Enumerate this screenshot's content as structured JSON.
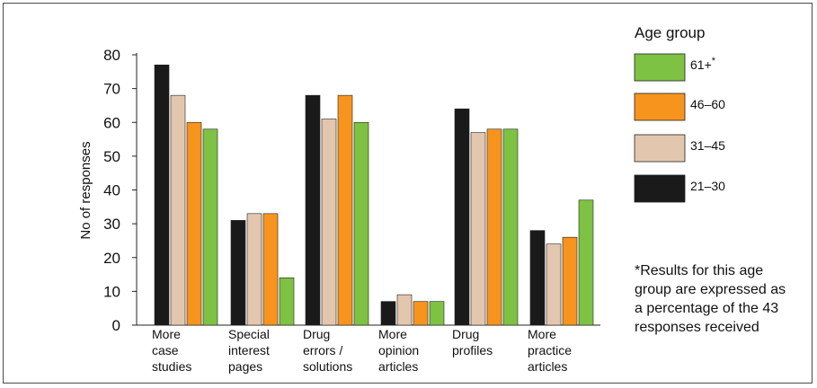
{
  "chart_data": {
    "type": "bar",
    "ylabel": "No of responses",
    "xlabel": "",
    "ylim": [
      0,
      80
    ],
    "yticks": [
      0,
      10,
      20,
      30,
      40,
      50,
      60,
      70,
      80
    ],
    "categories": [
      [
        "More",
        "case",
        "studies"
      ],
      [
        "Special",
        "interest",
        "pages"
      ],
      [
        "Drug",
        "errors /",
        "solutions"
      ],
      [
        "More",
        "opinion",
        "articles"
      ],
      [
        "Drug",
        "profiles"
      ],
      [
        "More",
        "practice",
        "articles"
      ]
    ],
    "legend_title": "Age group",
    "legend_placement": "right",
    "series": [
      {
        "name": "21–30",
        "color": "#1a1a1a",
        "values": [
          77,
          31,
          68,
          7,
          64,
          28
        ]
      },
      {
        "name": "31–45",
        "color": "#e3c6ae",
        "values": [
          68,
          33,
          61,
          9,
          57,
          24
        ]
      },
      {
        "name": "46–60",
        "color": "#f7941d",
        "values": [
          60,
          33,
          68,
          7,
          58,
          26
        ]
      },
      {
        "name": "61+",
        "name_suffix": "*",
        "color": "#7dc242",
        "values": [
          58,
          14,
          60,
          7,
          58,
          37
        ]
      }
    ],
    "legend_order": [
      3,
      2,
      1,
      0
    ],
    "note": [
      "*Results for this age",
      "group are expressed as",
      "a percentage of the 43",
      "responses received"
    ],
    "grid": false
  }
}
